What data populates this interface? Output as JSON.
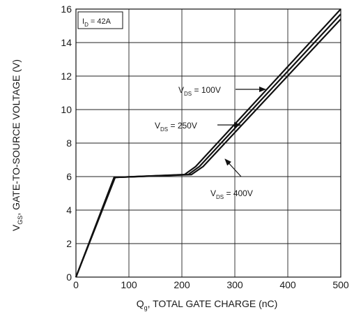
{
  "chart_data": {
    "type": "line",
    "xlabel": {
      "main": "Q",
      "sub": "g",
      "rest": ", TOTAL GATE CHARGE (nC)"
    },
    "ylabel": {
      "main": "V",
      "sub": "GS",
      "rest": ", GATE-TO-SOURCE  VOLTAGE (V)"
    },
    "xlim": [
      0,
      500
    ],
    "ylim": [
      0,
      16
    ],
    "xticks": [
      0,
      100,
      200,
      300,
      400,
      500
    ],
    "yticks": [
      0,
      2,
      4,
      6,
      8,
      10,
      12,
      14,
      16
    ],
    "grid": true,
    "annotation_box": {
      "main": "I",
      "sub": "D",
      "rest": " = 42A"
    },
    "series": [
      {
        "name": "V_DS = 100V",
        "label": {
          "main": "V",
          "sub": "DS",
          "rest": " = 100V"
        },
        "x": [
          0,
          72,
          205,
          226,
          500
        ],
        "y": [
          0,
          5.95,
          6.12,
          6.6,
          16
        ]
      },
      {
        "name": "V_DS = 250V",
        "label": {
          "main": "V",
          "sub": "DS",
          "rest": " = 250V"
        },
        "x": [
          0,
          73,
          212,
          233,
          500
        ],
        "y": [
          0,
          5.95,
          6.12,
          6.6,
          15.7
        ]
      },
      {
        "name": "V_DS = 400V",
        "label": {
          "main": "V",
          "sub": "DS",
          "rest": " = 400V"
        },
        "x": [
          0,
          74,
          218,
          240,
          500
        ],
        "y": [
          0,
          5.95,
          6.12,
          6.6,
          15.4
        ]
      }
    ],
    "colors": {
      "line": "#111111",
      "grid": "#222222",
      "background": "#ffffff"
    }
  }
}
